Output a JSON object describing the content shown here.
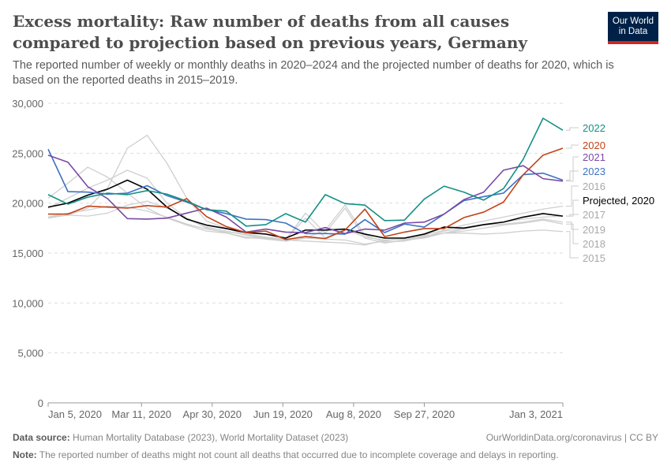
{
  "header": {
    "title": "Excess mortality: Raw number of deaths from all causes compared to projection based on previous years, Germany",
    "subtitle": "The reported number of weekly or monthly deaths in 2020–2024 and the projected number of deaths for 2020, which is based on the reported deaths in 2015–2019.",
    "logo": "Our World in Data"
  },
  "footer": {
    "source_label": "Data source:",
    "source": "Human Mortality Database (2023), World Mortality Dataset (2023)",
    "url": "OurWorldinData.org/coronavirus | CC BY",
    "note_label": "Note:",
    "note": "The reported number of deaths might not count all deaths that occurred due to incomplete coverage and delays in reporting."
  },
  "chart_data": {
    "type": "line",
    "title": "Excess mortality: Raw number of deaths from all causes compared to projection based on previous years, Germany",
    "xlabel": "",
    "ylabel": "",
    "ylim": [
      0,
      30000
    ],
    "yticks": [
      0,
      5000,
      10000,
      15000,
      20000,
      25000,
      30000
    ],
    "ytick_labels": [
      "0",
      "5,000",
      "10,000",
      "15,000",
      "20,000",
      "25,000",
      "30,000"
    ],
    "xlim": [
      "2020-01-05",
      "2021-01-03"
    ],
    "xticks": [
      "2020-01-05",
      "2020-03-11",
      "2020-04-30",
      "2020-06-19",
      "2020-08-08",
      "2020-09-27",
      "2021-01-03"
    ],
    "xtick_labels": [
      "Jan 5, 2020",
      "Mar 11, 2020",
      "Apr 30, 2020",
      "Jun 19, 2020",
      "Aug 8, 2020",
      "Sep 27, 2020",
      "Jan 3, 2021"
    ],
    "grid": "horizontal dashed",
    "legend": "right (end-of-line labels)",
    "x": [
      "2020-01-05",
      "2020-01-19",
      "2020-02-02",
      "2020-02-16",
      "2020-03-01",
      "2020-03-15",
      "2020-03-29",
      "2020-04-12",
      "2020-04-26",
      "2020-05-10",
      "2020-05-24",
      "2020-06-07",
      "2020-06-21",
      "2020-07-05",
      "2020-07-19",
      "2020-08-02",
      "2020-08-16",
      "2020-08-30",
      "2020-09-13",
      "2020-09-27",
      "2020-10-11",
      "2020-10-25",
      "2020-11-08",
      "2020-11-22",
      "2020-12-06",
      "2020-12-20",
      "2021-01-03"
    ],
    "series": [
      {
        "name": "2015",
        "color": "#cfcfcf",
        "values": [
          19500,
          20500,
          21500,
          22300,
          23300,
          22500,
          20000,
          18500,
          17500,
          17000,
          16500,
          16500,
          16300,
          19000,
          17000,
          19500,
          16500,
          16000,
          16300,
          16500,
          17000,
          17000,
          16900,
          17000,
          17200,
          17300,
          17150
        ]
      },
      {
        "name": "2016",
        "color": "#cfcfcf",
        "values": [
          18600,
          18800,
          18700,
          19000,
          19800,
          20200,
          19500,
          18500,
          17600,
          17200,
          16800,
          16500,
          16300,
          16200,
          16100,
          16000,
          15800,
          16300,
          16400,
          16800,
          17300,
          17800,
          18200,
          18600,
          19000,
          19400,
          19700
        ]
      },
      {
        "name": "2017",
        "color": "#cfcfcf",
        "values": [
          20500,
          22000,
          23600,
          22600,
          21000,
          19500,
          18500,
          17800,
          17200,
          17000,
          16600,
          16400,
          16200,
          16500,
          16400,
          16300,
          15900,
          16200,
          16500,
          16700,
          17000,
          17400,
          17800,
          18100,
          18400,
          18600,
          18700
        ]
      },
      {
        "name": "2018",
        "color": "#cfcfcf",
        "values": [
          18500,
          18800,
          19500,
          21500,
          25500,
          26800,
          24000,
          20500,
          18200,
          17500,
          16800,
          16400,
          16200,
          16500,
          17300,
          19800,
          16800,
          16100,
          16200,
          16600,
          17000,
          17200,
          17500,
          17800,
          18000,
          18300,
          17900
        ]
      },
      {
        "name": "2019",
        "color": "#cfcfcf",
        "values": [
          18600,
          19000,
          19300,
          19700,
          19600,
          19200,
          18600,
          17900,
          17400,
          17100,
          16900,
          16600,
          16400,
          18500,
          16500,
          17400,
          16600,
          16300,
          16400,
          16600,
          17200,
          17500,
          17800,
          17900,
          18100,
          18400,
          18100
        ]
      },
      {
        "name": "Projected, 2020",
        "color": "#000000",
        "values": [
          19600,
          20000,
          20800,
          21400,
          22300,
          21400,
          19600,
          18400,
          17800,
          17450,
          17050,
          16900,
          16500,
          17300,
          17300,
          17400,
          16900,
          16500,
          16500,
          16900,
          17600,
          17500,
          17850,
          18100,
          18600,
          18950,
          18700
        ]
      },
      {
        "name": "2023",
        "color": "#3d72c4",
        "values": [
          25400,
          21150,
          21100,
          20900,
          21000,
          21750,
          20750,
          20100,
          19350,
          18950,
          18400,
          18350,
          18000,
          16950,
          16950,
          16900,
          18350,
          17050,
          17900,
          17600,
          18900,
          20250,
          20650,
          21000,
          22850,
          23000,
          22300
        ]
      },
      {
        "name": "2021",
        "color": "#7a49a5",
        "values": [
          24800,
          24100,
          21650,
          20450,
          18450,
          18400,
          18500,
          19000,
          19500,
          18600,
          17100,
          17400,
          17100,
          17050,
          17550,
          16950,
          17400,
          17300,
          18000,
          18100,
          18900,
          20350,
          21100,
          23300,
          23750,
          22450,
          22200
        ]
      },
      {
        "name": "2020",
        "color": "#c34218",
        "values": [
          18900,
          18900,
          19700,
          19600,
          19500,
          19750,
          19600,
          20450,
          18650,
          17650,
          17050,
          17200,
          16350,
          16650,
          16450,
          17300,
          19400,
          16650,
          17100,
          17450,
          17450,
          18550,
          19100,
          20100,
          22850,
          24800,
          25500
        ]
      },
      {
        "name": "2022",
        "color": "#158f86",
        "values": [
          20850,
          19900,
          20600,
          21000,
          20850,
          21250,
          20900,
          20200,
          19350,
          19200,
          17700,
          17850,
          18950,
          18100,
          20850,
          19950,
          19800,
          18250,
          18300,
          20400,
          21700,
          21100,
          20300,
          21450,
          24400,
          28500,
          27300
        ]
      }
    ],
    "legend_order": [
      "2022",
      "2020",
      "2021",
      "2023",
      "2016",
      "Projected, 2020",
      "2017",
      "2019",
      "2018",
      "2015"
    ]
  }
}
